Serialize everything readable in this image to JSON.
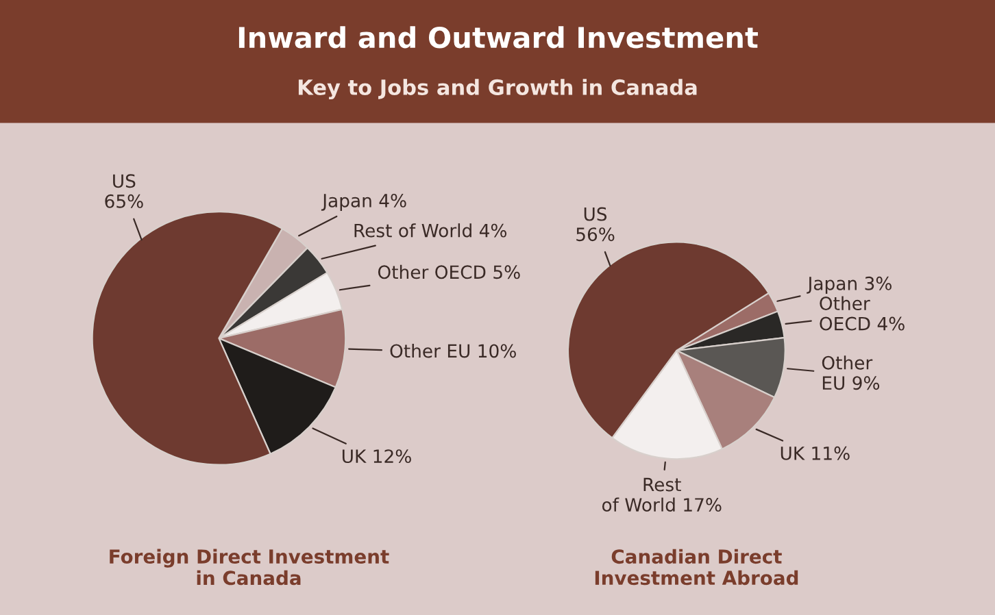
{
  "chart_data": [
    {
      "type": "pie",
      "title": "Inward and Outward Investment",
      "subtitle": "Key to Jobs and Growth in Canada",
      "xlabel": "Foreign Direct Investment\nin Canada",
      "categories": [
        "Japan",
        "Rest of World",
        "Other OECD",
        "Other EU",
        "UK",
        "US"
      ],
      "values": [
        4,
        4,
        5,
        10,
        12,
        65
      ],
      "value_labels": [
        "4%",
        "4%",
        "5%",
        "10%",
        "12%",
        "65%"
      ],
      "colors": [
        "#c9b2b0",
        "#3a3836",
        "#f3efee",
        "#9c6c67",
        "#1f1c1a",
        "#6e3a30"
      ]
    },
    {
      "type": "pie",
      "xlabel": "Canadian Direct\nInvestment Abroad",
      "categories": [
        "Japan",
        "Other OECD",
        "Other EU",
        "UK",
        "Rest of World",
        "US"
      ],
      "values": [
        3,
        4,
        9,
        11,
        17,
        56
      ],
      "value_labels": [
        "3%",
        "4%",
        "9%",
        "11%",
        "17%",
        "56%"
      ],
      "colors": [
        "#9c6c67",
        "#2a2826",
        "#5a5754",
        "#a8807c",
        "#f3efee",
        "#6e3a30"
      ]
    }
  ]
}
